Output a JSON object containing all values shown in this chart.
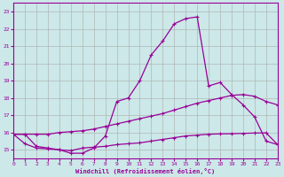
{
  "xlabel": "Windchill (Refroidissement éolien,°C)",
  "background_color": "#cce8e8",
  "grid_color": "#aaaaaa",
  "line_color": "#990099",
  "xlim": [
    0,
    23
  ],
  "ylim": [
    14.5,
    23.5
  ],
  "yticks": [
    15,
    16,
    17,
    18,
    19,
    20,
    21,
    22,
    23
  ],
  "xticks": [
    0,
    1,
    2,
    3,
    4,
    5,
    6,
    7,
    8,
    9,
    10,
    11,
    12,
    13,
    14,
    15,
    16,
    17,
    18,
    19,
    20,
    21,
    22,
    23
  ],
  "curve1_x": [
    0,
    1,
    2,
    3,
    4,
    5,
    6,
    7,
    8,
    9,
    10,
    11,
    12,
    13,
    14,
    15,
    16,
    17,
    18,
    19,
    20,
    21,
    22,
    23
  ],
  "curve1_y": [
    15.9,
    15.9,
    15.2,
    15.1,
    15.0,
    14.8,
    14.8,
    15.1,
    15.8,
    17.8,
    18.0,
    19.0,
    20.5,
    21.3,
    22.3,
    22.6,
    22.7,
    18.7,
    18.9,
    18.2,
    17.6,
    16.9,
    15.5,
    15.3
  ],
  "curve2_x": [
    0,
    1,
    2,
    3,
    4,
    5,
    6,
    7,
    8,
    9,
    10,
    11,
    12,
    13,
    14,
    15,
    16,
    17,
    18,
    19,
    20,
    21,
    22,
    23
  ],
  "curve2_y": [
    15.9,
    15.9,
    15.9,
    15.9,
    16.0,
    16.05,
    16.1,
    16.2,
    16.35,
    16.5,
    16.65,
    16.8,
    16.95,
    17.1,
    17.3,
    17.5,
    17.7,
    17.85,
    18.0,
    18.15,
    18.2,
    18.1,
    17.8,
    17.6
  ],
  "curve3_x": [
    0,
    1,
    2,
    3,
    4,
    5,
    6,
    7,
    8,
    9,
    10,
    11,
    12,
    13,
    14,
    15,
    16,
    17,
    18,
    19,
    20,
    21,
    22,
    23
  ],
  "curve3_y": [
    15.9,
    15.35,
    15.1,
    15.05,
    15.0,
    14.95,
    15.1,
    15.15,
    15.2,
    15.3,
    15.35,
    15.4,
    15.5,
    15.6,
    15.7,
    15.8,
    15.85,
    15.9,
    15.92,
    15.93,
    15.95,
    15.97,
    15.98,
    15.3
  ]
}
